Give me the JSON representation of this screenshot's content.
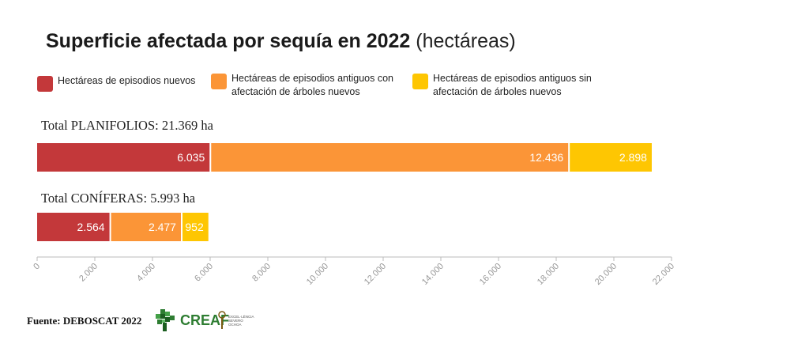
{
  "title": {
    "bold": "Superficie afectada por sequía en 2022",
    "unit": "(hectáreas)"
  },
  "legend": [
    {
      "label_1": "Hectáreas de episodios nuevos",
      "label_2": "",
      "color": "#c3383a"
    },
    {
      "label_1": "Hectáreas de episodios antiguos con",
      "label_2": "afectación de árboles nuevos",
      "color": "#fb9537"
    },
    {
      "label_1": "Hectáreas de episodios antiguos sin",
      "label_2": "afectación de árboles nuevos",
      "color": "#fec602"
    }
  ],
  "chart_data": {
    "type": "bar",
    "orientation": "horizontal",
    "stacked": true,
    "categories": [
      "PLANIFOLIOS",
      "CONÍFERAS"
    ],
    "category_labels": [
      "Total PLANIFOLIOS: 21.369 ha",
      "Total CONÍFERAS: 5.993 ha"
    ],
    "series": [
      {
        "name": "Hectáreas de episodios nuevos",
        "values": [
          6035,
          2564
        ],
        "value_labels": [
          "6.035",
          "2.564"
        ],
        "color": "#c3383a"
      },
      {
        "name": "Hectáreas de episodios antiguos con afectación de árboles nuevos",
        "values": [
          12436,
          2477
        ],
        "value_labels": [
          "12.436",
          "2.477"
        ],
        "color": "#fb9537"
      },
      {
        "name": "Hectáreas de episodios antiguos sin afectación de árboles nuevos",
        "values": [
          2898,
          952
        ],
        "value_labels": [
          "2.898",
          "952"
        ],
        "color": "#fec602"
      }
    ],
    "xlim": [
      0,
      22000
    ],
    "xticks": [
      0,
      2000,
      4000,
      6000,
      8000,
      10000,
      12000,
      14000,
      16000,
      18000,
      20000,
      22000
    ],
    "xtick_labels": [
      "0",
      "2.000",
      "4.000",
      "6.000",
      "8.000",
      "10.000",
      "12.000",
      "14.000",
      "16.000",
      "18.000",
      "20.000",
      "22.000"
    ],
    "grid": false,
    "legend_position": "top"
  },
  "source": "Fuente: DEBOSCAT 2022",
  "logo": {
    "name": "CREAF",
    "seal_text": "EXCEL·LÈNCIA SEVERO OCHOA",
    "logo_icon": "creaf-pixel-tree-icon",
    "seal_icon": "severo-ochoa-seal-icon"
  }
}
